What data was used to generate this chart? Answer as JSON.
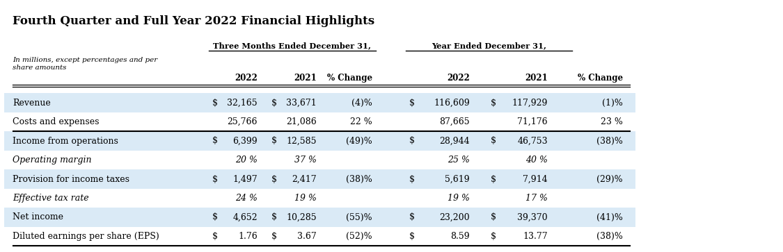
{
  "title": "Fourth Quarter and Full Year 2022 Financial Highlights",
  "subheader_left": "Three Months Ended December 31,",
  "subheader_right": "Year Ended December 31,",
  "rows": [
    {
      "label": "Revenue",
      "q4_dollar": "$",
      "q4_2022": "32,165",
      "q4_dollar2": "$",
      "q4_2021": "33,671",
      "q4_change": "(4)%",
      "fy_dollar": "$",
      "fy_2022": "116,609",
      "fy_dollar2": "$",
      "fy_2021": "117,929",
      "fy_change": "(1)%",
      "italic": false,
      "highlight": true,
      "bottom_border": false
    },
    {
      "label": "Costs and expenses",
      "q4_dollar": "",
      "q4_2022": "25,766",
      "q4_dollar2": "",
      "q4_2021": "21,086",
      "q4_change": "22 %",
      "fy_dollar": "",
      "fy_2022": "87,665",
      "fy_dollar2": "",
      "fy_2021": "71,176",
      "fy_change": "23 %",
      "italic": false,
      "highlight": false,
      "bottom_border": true
    },
    {
      "label": "Income from operations",
      "q4_dollar": "$",
      "q4_2022": "6,399",
      "q4_dollar2": "$",
      "q4_2021": "12,585",
      "q4_change": "(49)%",
      "fy_dollar": "$",
      "fy_2022": "28,944",
      "fy_dollar2": "$",
      "fy_2021": "46,753",
      "fy_change": "(38)%",
      "italic": false,
      "highlight": true,
      "bottom_border": false
    },
    {
      "label": "Operating margin",
      "q4_dollar": "",
      "q4_2022": "20 %",
      "q4_dollar2": "",
      "q4_2021": "37 %",
      "q4_change": "",
      "fy_dollar": "",
      "fy_2022": "25 %",
      "fy_dollar2": "",
      "fy_2021": "40 %",
      "fy_change": "",
      "italic": true,
      "highlight": false,
      "bottom_border": false
    },
    {
      "label": "Provision for income taxes",
      "q4_dollar": "$",
      "q4_2022": "1,497",
      "q4_dollar2": "$",
      "q4_2021": "2,417",
      "q4_change": "(38)%",
      "fy_dollar": "$",
      "fy_2022": "5,619",
      "fy_dollar2": "$",
      "fy_2021": "7,914",
      "fy_change": "(29)%",
      "italic": false,
      "highlight": true,
      "bottom_border": false
    },
    {
      "label": "Effective tax rate",
      "q4_dollar": "",
      "q4_2022": "24 %",
      "q4_dollar2": "",
      "q4_2021": "19 %",
      "q4_change": "",
      "fy_dollar": "",
      "fy_2022": "19 %",
      "fy_dollar2": "",
      "fy_2021": "17 %",
      "fy_change": "",
      "italic": true,
      "highlight": false,
      "bottom_border": false
    },
    {
      "label": "Net income",
      "q4_dollar": "$",
      "q4_2022": "4,652",
      "q4_dollar2": "$",
      "q4_2021": "10,285",
      "q4_change": "(55)%",
      "fy_dollar": "$",
      "fy_2022": "23,200",
      "fy_dollar2": "$",
      "fy_2021": "39,370",
      "fy_change": "(41)%",
      "italic": false,
      "highlight": true,
      "bottom_border": false
    },
    {
      "label": "Diluted earnings per share (EPS)",
      "q4_dollar": "$",
      "q4_2022": "1.76",
      "q4_dollar2": "$",
      "q4_2021": "3.67",
      "q4_change": "(52)%",
      "fy_dollar": "$",
      "fy_2022": "8.59",
      "fy_dollar2": "$",
      "fy_2021": "13.77",
      "fy_change": "(38)%",
      "italic": false,
      "highlight": false,
      "bottom_border": false
    }
  ],
  "highlight_color": "#daeaf6",
  "background_color": "#ffffff",
  "text_color": "#000000",
  "figwidth": 11.25,
  "figheight": 3.63,
  "dpi": 100
}
